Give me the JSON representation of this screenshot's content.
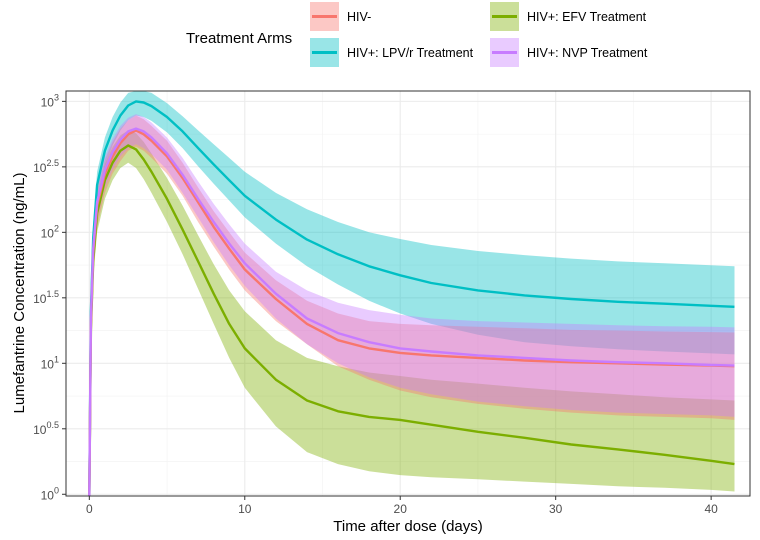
{
  "chart_data": {
    "type": "line",
    "xlabel": "Time after dose (days)",
    "ylabel": "Lumefantrine Concentration (ng/mL)",
    "x_scale": "linear",
    "y_scale": "log10",
    "xlim": [
      -1.5,
      42.5
    ],
    "ylim": [
      0.97,
      1200
    ],
    "x_ticks": [
      0,
      10,
      20,
      30,
      40
    ],
    "x_tick_labels": [
      "0",
      "10",
      "20",
      "30",
      "40"
    ],
    "y_ticks": [
      1,
      3.162,
      10,
      31.62,
      100,
      316.2,
      1000
    ],
    "y_tick_labels": [
      {
        "base": "10",
        "exp": "0"
      },
      {
        "base": "10",
        "exp": "0.5"
      },
      {
        "base": "10",
        "exp": "1"
      },
      {
        "base": "10",
        "exp": "1.5"
      },
      {
        "base": "10",
        "exp": "2"
      },
      {
        "base": "10",
        "exp": "2.5"
      },
      {
        "base": "10",
        "exp": "3"
      }
    ],
    "grid": true,
    "panel_background": "#ffffff",
    "grid_color": "#ebebeb",
    "legend": {
      "title": "Treatment Arms",
      "position": "top"
    },
    "x": [
      0,
      0.1,
      0.25,
      0.5,
      1,
      1.5,
      2,
      2.5,
      3,
      3.5,
      4,
      5,
      6,
      7,
      8,
      9,
      10,
      12,
      14,
      16,
      18,
      20,
      22,
      25,
      28,
      31,
      34,
      37,
      40,
      41.5
    ],
    "series": [
      {
        "name": "HIV-",
        "color": "#f8766d",
        "median": [
          0.8,
          20,
          70,
          160,
          280,
          380,
          480,
          560,
          600,
          560,
          500,
          380,
          260,
          170,
          110,
          75,
          52,
          31,
          20,
          15,
          13,
          12,
          11.5,
          11,
          10.5,
          10.2,
          10,
          9.8,
          9.6,
          9.5
        ],
        "lower": [
          0.7,
          15,
          50,
          110,
          200,
          280,
          350,
          420,
          450,
          420,
          370,
          280,
          190,
          120,
          78,
          52,
          36,
          21,
          14,
          9.5,
          7.5,
          6.2,
          5.5,
          4.9,
          4.5,
          4.2,
          4,
          3.9,
          3.8,
          3.7
        ],
        "upper": [
          0.9,
          26,
          90,
          210,
          360,
          490,
          620,
          720,
          780,
          730,
          650,
          500,
          340,
          220,
          145,
          100,
          70,
          43,
          30,
          24,
          21,
          20,
          19.5,
          19,
          18.5,
          18,
          17.8,
          17.5,
          17.3,
          17.2
        ]
      },
      {
        "name": "HIV+: LPV/r Treatment",
        "color": "#00bfc4",
        "median": [
          0.8,
          25,
          90,
          230,
          420,
          600,
          780,
          930,
          1000,
          980,
          920,
          760,
          590,
          440,
          330,
          250,
          190,
          125,
          88,
          68,
          55,
          47,
          41,
          36,
          33,
          31,
          29.5,
          28.5,
          27.5,
          27
        ],
        "lower": [
          0.7,
          18,
          65,
          170,
          320,
          460,
          600,
          720,
          780,
          760,
          710,
          580,
          440,
          320,
          235,
          175,
          130,
          82,
          55,
          40,
          30,
          24,
          20,
          16.5,
          14.5,
          13.5,
          12.8,
          12.3,
          11.9,
          11.7
        ],
        "upper": [
          0.9,
          32,
          115,
          290,
          530,
          760,
          980,
          1160,
          1250,
          1230,
          1160,
          970,
          770,
          600,
          470,
          370,
          290,
          200,
          150,
          120,
          100,
          89,
          80,
          72,
          67,
          63,
          60,
          58,
          56,
          55
        ]
      },
      {
        "name": "HIV+: EFV Treatment",
        "color": "#7cae00",
        "median": [
          0.8,
          18,
          60,
          140,
          250,
          340,
          420,
          460,
          430,
          360,
          290,
          180,
          105,
          60,
          34,
          20,
          13,
          7.5,
          5.2,
          4.3,
          3.9,
          3.7,
          3.4,
          3,
          2.7,
          2.4,
          2.2,
          2,
          1.8,
          1.7
        ],
        "lower": [
          0.7,
          13,
          45,
          100,
          180,
          250,
          310,
          340,
          310,
          255,
          200,
          120,
          68,
          37,
          20,
          11,
          6.5,
          3.3,
          2.1,
          1.7,
          1.5,
          1.4,
          1.35,
          1.3,
          1.25,
          1.2,
          1.15,
          1.12,
          1.08,
          1.05
        ],
        "upper": [
          0.9,
          24,
          80,
          185,
          330,
          450,
          550,
          600,
          570,
          490,
          400,
          260,
          160,
          95,
          57,
          36,
          25,
          15,
          11,
          9.5,
          8.5,
          8,
          7.5,
          7,
          6.5,
          6.1,
          5.8,
          5.5,
          5.3,
          5.2
        ]
      },
      {
        "name": "HIV+: NVP Treatment",
        "color": "#c77cff",
        "median": [
          0.8,
          22,
          75,
          170,
          300,
          410,
          510,
          590,
          620,
          590,
          530,
          400,
          275,
          180,
          120,
          82,
          58,
          34,
          22,
          17,
          14.5,
          13,
          12.3,
          11.5,
          11,
          10.5,
          10.2,
          10,
          9.7,
          9.6
        ],
        "lower": [
          0.7,
          16,
          55,
          125,
          220,
          300,
          380,
          440,
          470,
          440,
          395,
          300,
          200,
          130,
          84,
          56,
          39,
          22,
          14,
          10,
          7.8,
          6.5,
          5.8,
          5.1,
          4.7,
          4.4,
          4.2,
          4.1,
          4,
          3.9
        ],
        "upper": [
          0.9,
          28,
          95,
          220,
          380,
          520,
          650,
          750,
          800,
          760,
          690,
          530,
          370,
          245,
          165,
          115,
          82,
          50,
          36,
          29,
          25.5,
          23.5,
          22,
          21,
          20.5,
          20,
          19.5,
          19.2,
          19,
          18.8
        ]
      }
    ]
  }
}
